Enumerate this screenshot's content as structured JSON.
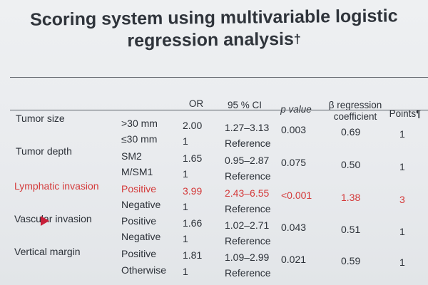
{
  "slide": {
    "title_line1": "Scoring system using multivariable logistic",
    "title_line2": "regression analysis",
    "title_mark": "†"
  },
  "table": {
    "headers": {
      "or": "OR",
      "ci": "95 % CI",
      "p": "p value",
      "beta_line1": "β regression",
      "beta_line2": "coefficient",
      "points": "Points¶"
    },
    "groups": [
      {
        "name": "Tumor size",
        "highlight": false,
        "beta": "0.69",
        "points": "1",
        "rows": [
          {
            "level": ">30 mm",
            "or": "2.00",
            "ci": "1.27–3.13",
            "p": "0.003"
          },
          {
            "level": "≤30 mm",
            "or": "1",
            "ci": "Reference",
            "p": ""
          }
        ]
      },
      {
        "name": "Tumor depth",
        "highlight": false,
        "beta": "0.50",
        "points": "1",
        "rows": [
          {
            "level": "SM2",
            "or": "1.65",
            "ci": "0.95–2.87",
            "p": "0.075"
          },
          {
            "level": "M/SM1",
            "or": "1",
            "ci": "Reference",
            "p": ""
          }
        ]
      },
      {
        "name": "Lymphatic invasion",
        "highlight": true,
        "beta": "1.38",
        "points": "3",
        "rows": [
          {
            "level": "Positive",
            "or": "3.99",
            "ci": "2.43–6.55",
            "p": "<0.001"
          },
          {
            "level": "Negative",
            "or": "1",
            "ci": "Reference",
            "p": ""
          }
        ]
      },
      {
        "name": "Vascular invasion",
        "highlight": false,
        "beta": "0.51",
        "points": "1",
        "rows": [
          {
            "level": "Positive",
            "or": "1.66",
            "ci": "1.02–2.71",
            "p": "0.043"
          },
          {
            "level": "Negative",
            "or": "1",
            "ci": "Reference",
            "p": ""
          }
        ]
      },
      {
        "name": "Vertical margin",
        "highlight": false,
        "beta": "0.59",
        "points": "1",
        "rows": [
          {
            "level": "Positive",
            "or": "1.81",
            "ci": "1.09–2.99",
            "p": "0.021"
          },
          {
            "level": "Otherwise",
            "or": "1",
            "ci": "Reference",
            "p": ""
          }
        ]
      }
    ]
  },
  "colors": {
    "highlight": "#d43a3a",
    "text": "#2c3138",
    "pointer": "#c8203a"
  }
}
